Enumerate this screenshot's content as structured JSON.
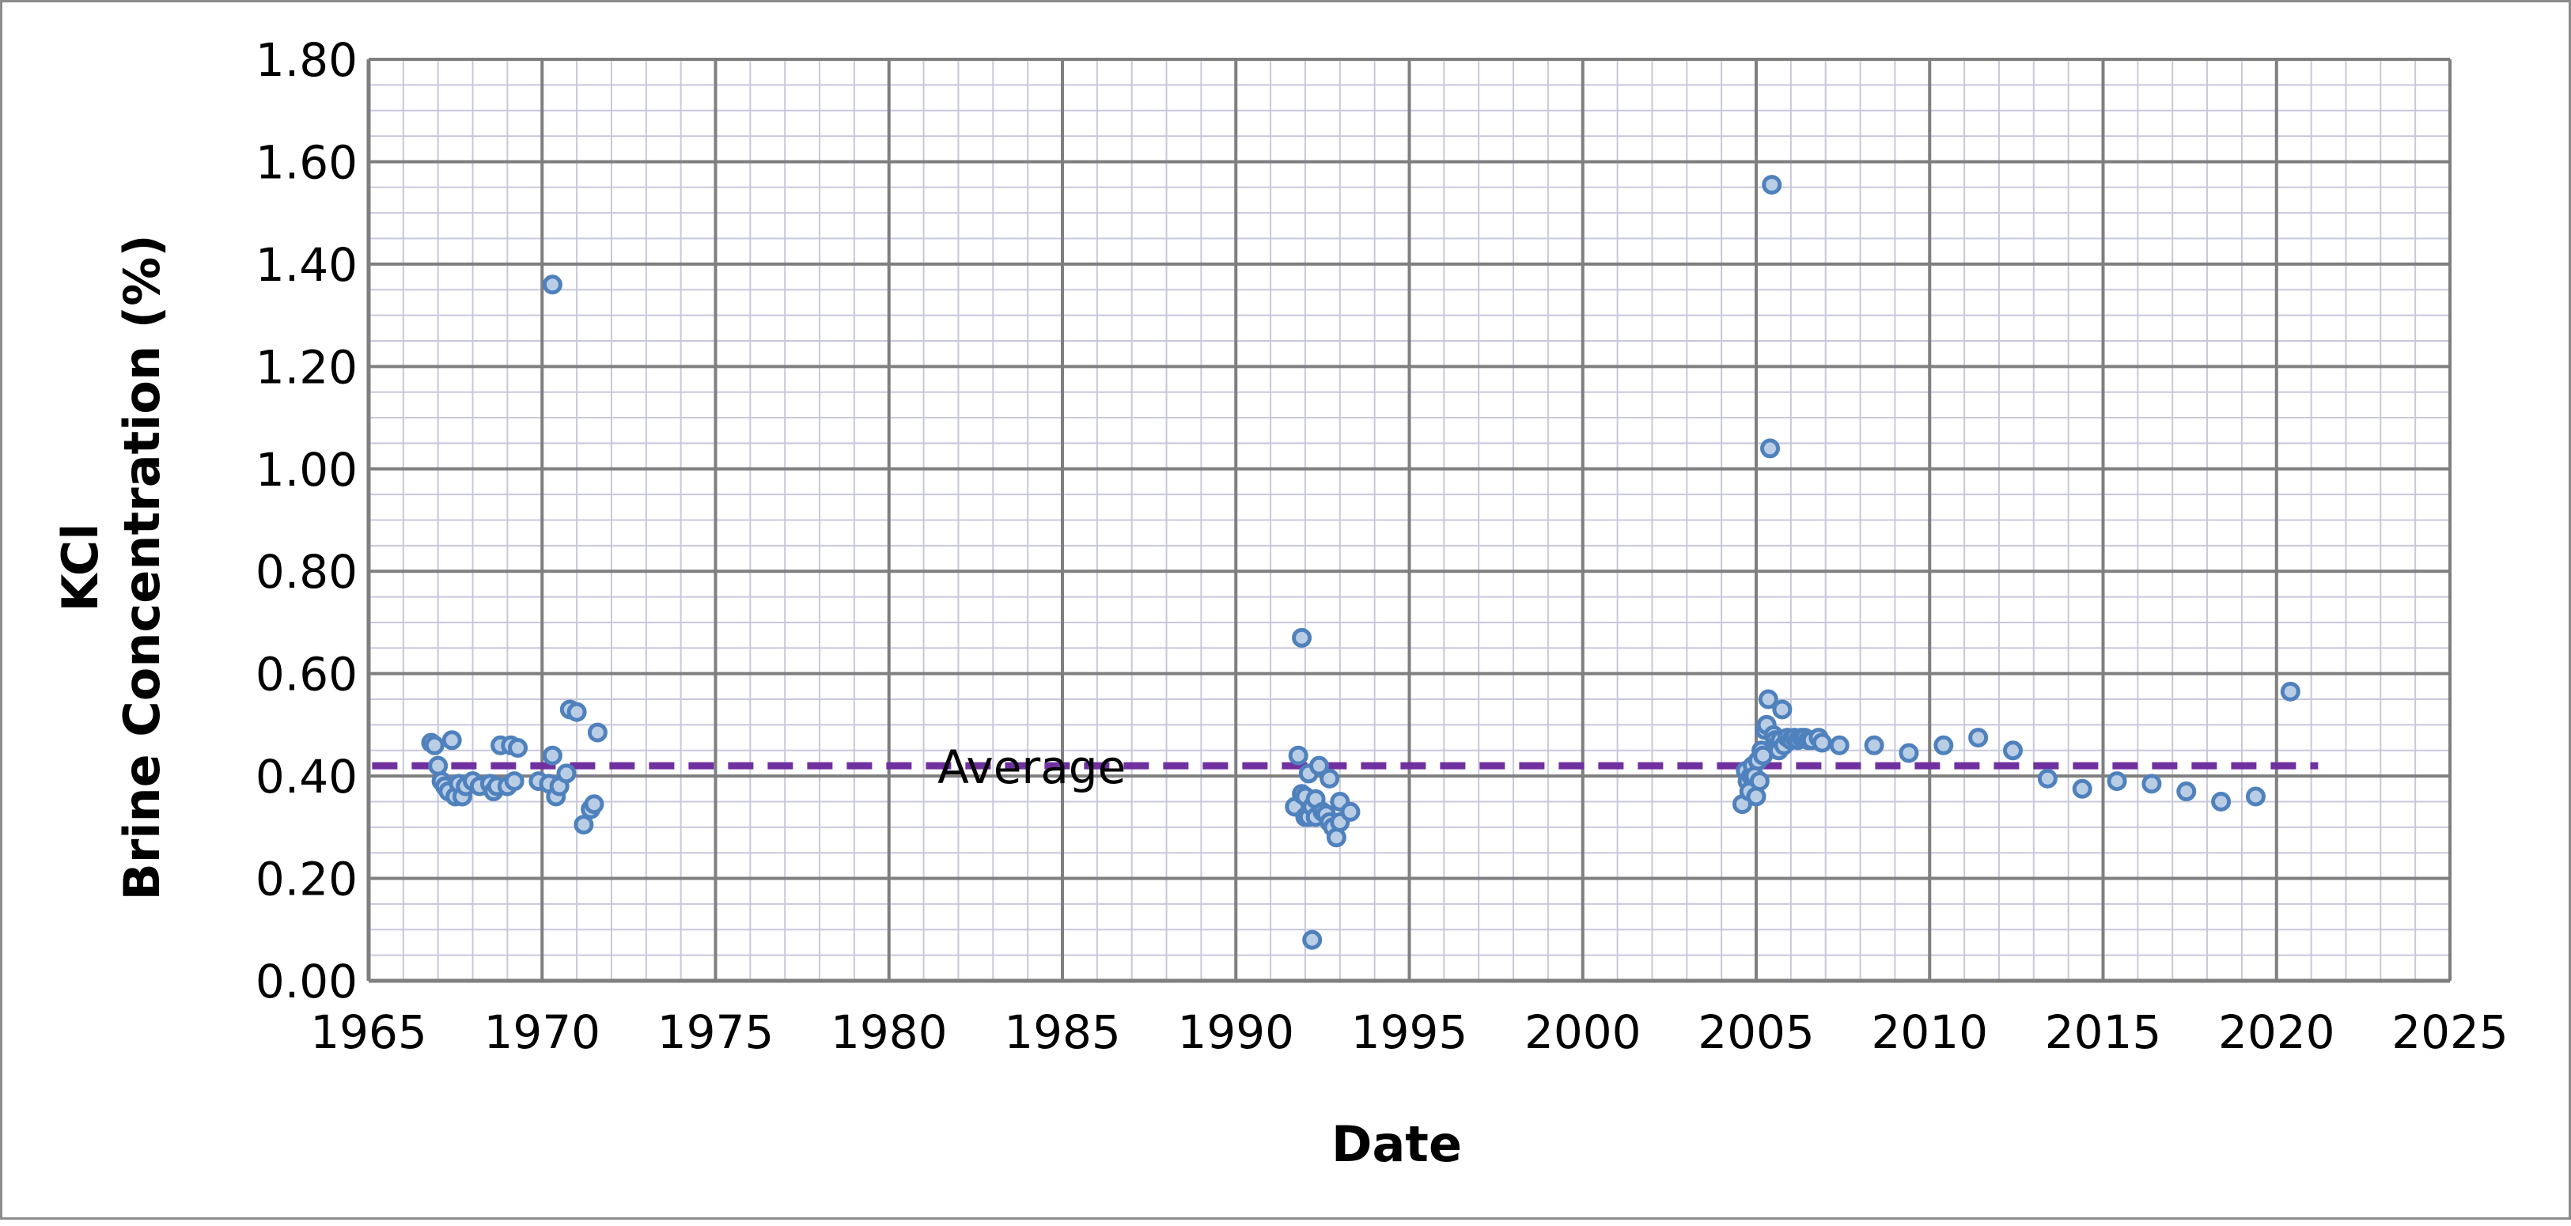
{
  "chart_data": {
    "type": "scatter",
    "title": "",
    "xlabel": "Date",
    "ylabel_lines": [
      "KCl",
      "Brine Concentration (%)"
    ],
    "xlim": [
      1965,
      2025
    ],
    "ylim": [
      0,
      1.8
    ],
    "x_ticks": [
      "1965",
      "1970",
      "1975",
      "1980",
      "1985",
      "1990",
      "1995",
      "2000",
      "2005",
      "2010",
      "2015",
      "2020",
      "2025"
    ],
    "y_ticks": [
      "0.00",
      "0.20",
      "0.40",
      "0.60",
      "0.80",
      "1.00",
      "1.20",
      "1.40",
      "1.60",
      "1.80"
    ],
    "grid": true,
    "legend": "none",
    "marker_color": "#4F81BD",
    "marker_fill": "#B9CDE5",
    "average_color": "#7030A0",
    "average": {
      "label": "Average",
      "value": 0.42,
      "x_range": [
        1965.1,
        2021.2
      ]
    },
    "points": [
      [
        1966.8,
        0.465
      ],
      [
        1966.9,
        0.46
      ],
      [
        1967.0,
        0.42
      ],
      [
        1967.1,
        0.39
      ],
      [
        1967.2,
        0.38
      ],
      [
        1967.3,
        0.37
      ],
      [
        1967.4,
        0.47
      ],
      [
        1967.5,
        0.36
      ],
      [
        1967.6,
        0.385
      ],
      [
        1967.7,
        0.36
      ],
      [
        1967.8,
        0.38
      ],
      [
        1968.0,
        0.39
      ],
      [
        1968.2,
        0.38
      ],
      [
        1968.5,
        0.385
      ],
      [
        1968.6,
        0.37
      ],
      [
        1968.7,
        0.38
      ],
      [
        1968.8,
        0.46
      ],
      [
        1969.0,
        0.38
      ],
      [
        1969.1,
        0.46
      ],
      [
        1969.2,
        0.39
      ],
      [
        1969.3,
        0.455
      ],
      [
        1969.9,
        0.39
      ],
      [
        1970.2,
        0.385
      ],
      [
        1970.3,
        1.36
      ],
      [
        1970.3,
        0.44
      ],
      [
        1970.4,
        0.36
      ],
      [
        1970.5,
        0.38
      ],
      [
        1970.7,
        0.405
      ],
      [
        1970.8,
        0.53
      ],
      [
        1971.0,
        0.525
      ],
      [
        1971.2,
        0.305
      ],
      [
        1971.4,
        0.335
      ],
      [
        1971.5,
        0.345
      ],
      [
        1971.6,
        0.485
      ],
      [
        1991.7,
        0.34
      ],
      [
        1991.8,
        0.44
      ],
      [
        1991.9,
        0.365
      ],
      [
        1991.9,
        0.67
      ],
      [
        1992.0,
        0.32
      ],
      [
        1992.0,
        0.36
      ],
      [
        1992.1,
        0.405
      ],
      [
        1992.1,
        0.32
      ],
      [
        1992.2,
        0.08
      ],
      [
        1992.2,
        0.34
      ],
      [
        1992.3,
        0.355
      ],
      [
        1992.3,
        0.32
      ],
      [
        1992.4,
        0.42
      ],
      [
        1992.5,
        0.33
      ],
      [
        1992.6,
        0.325
      ],
      [
        1992.7,
        0.31
      ],
      [
        1992.7,
        0.395
      ],
      [
        1992.8,
        0.3
      ],
      [
        1992.9,
        0.28
      ],
      [
        1993.0,
        0.35
      ],
      [
        1993.0,
        0.31
      ],
      [
        1993.3,
        0.33
      ],
      [
        2004.6,
        0.345
      ],
      [
        2004.7,
        0.41
      ],
      [
        2004.75,
        0.39
      ],
      [
        2004.8,
        0.37
      ],
      [
        2004.85,
        0.4
      ],
      [
        2004.9,
        0.42
      ],
      [
        2004.95,
        0.4
      ],
      [
        2005.0,
        0.36
      ],
      [
        2005.05,
        0.43
      ],
      [
        2005.1,
        0.39
      ],
      [
        2005.15,
        0.45
      ],
      [
        2005.2,
        0.44
      ],
      [
        2005.25,
        0.49
      ],
      [
        2005.3,
        0.5
      ],
      [
        2005.35,
        0.55
      ],
      [
        2005.4,
        1.04
      ],
      [
        2005.45,
        1.555
      ],
      [
        2005.5,
        0.48
      ],
      [
        2005.55,
        0.47
      ],
      [
        2005.6,
        0.46
      ],
      [
        2005.65,
        0.45
      ],
      [
        2005.7,
        0.47
      ],
      [
        2005.75,
        0.53
      ],
      [
        2005.8,
        0.46
      ],
      [
        2005.9,
        0.475
      ],
      [
        2006.0,
        0.47
      ],
      [
        2006.1,
        0.475
      ],
      [
        2006.2,
        0.47
      ],
      [
        2006.3,
        0.475
      ],
      [
        2006.4,
        0.475
      ],
      [
        2006.5,
        0.47
      ],
      [
        2006.6,
        0.47
      ],
      [
        2006.8,
        0.475
      ],
      [
        2006.9,
        0.465
      ],
      [
        2007.4,
        0.46
      ],
      [
        2008.4,
        0.46
      ],
      [
        2009.4,
        0.445
      ],
      [
        2010.4,
        0.46
      ],
      [
        2011.4,
        0.475
      ],
      [
        2012.4,
        0.45
      ],
      [
        2013.4,
        0.395
      ],
      [
        2014.4,
        0.375
      ],
      [
        2015.4,
        0.39
      ],
      [
        2016.4,
        0.385
      ],
      [
        2017.4,
        0.37
      ],
      [
        2018.4,
        0.35
      ],
      [
        2019.4,
        0.36
      ],
      [
        2020.4,
        0.565
      ]
    ]
  }
}
